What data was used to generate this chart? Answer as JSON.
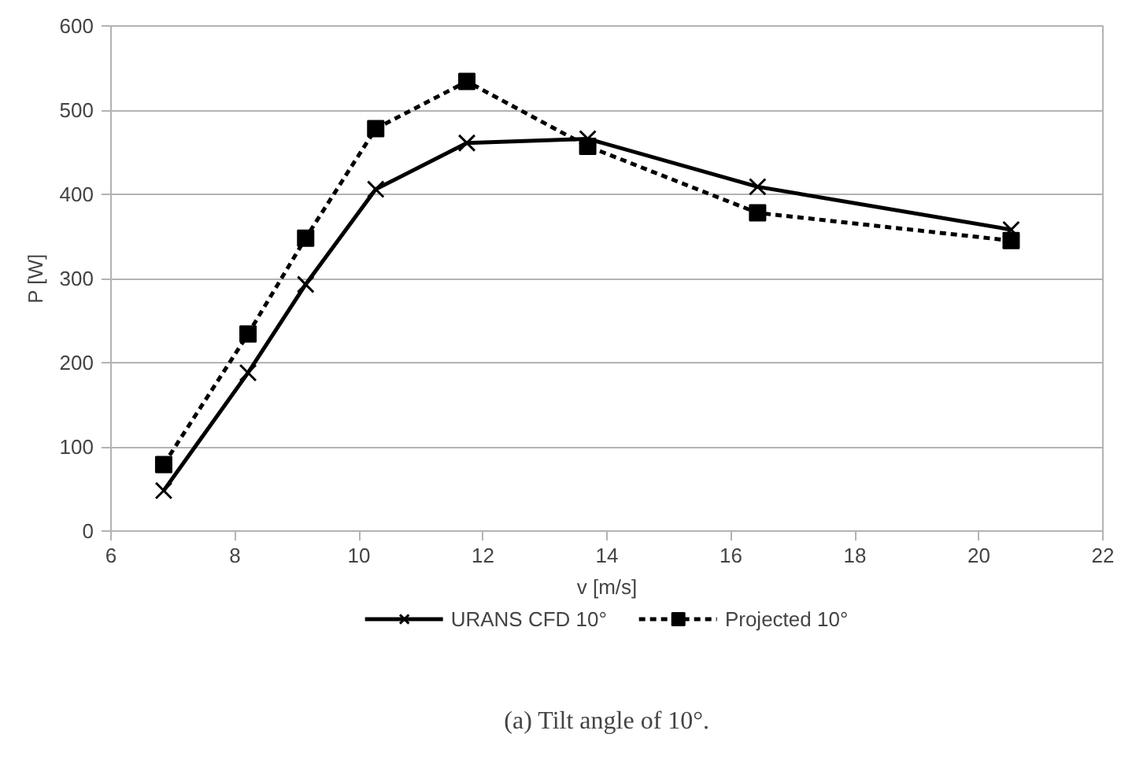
{
  "chart_data": {
    "type": "line",
    "xlabel": "v [m/s]",
    "ylabel": "P [W]",
    "x": [
      6.85,
      8.21,
      9.14,
      10.27,
      11.74,
      13.69,
      16.43,
      20.52
    ],
    "series": [
      {
        "name": "URANS CFD 10°",
        "color": "#000000",
        "marker": "cross",
        "line_style": "solid",
        "values": [
          48,
          188,
          293,
          406,
          461,
          466,
          409,
          358
        ]
      },
      {
        "name": "Projected 10°",
        "color": "#000000",
        "marker": "square",
        "line_style": "dashed",
        "values": [
          79,
          234,
          348,
          478,
          534,
          457,
          378,
          345
        ]
      }
    ],
    "xlim": [
      6,
      22
    ],
    "xticks": [
      6,
      8,
      10,
      12,
      14,
      16,
      18,
      20,
      22
    ],
    "ylim": [
      0,
      600
    ],
    "yticks": [
      0,
      100,
      200,
      300,
      400,
      500,
      600
    ],
    "grid": "y",
    "legend": "bottom",
    "annotations": [
      "(a) Tilt angle of 10°."
    ]
  }
}
